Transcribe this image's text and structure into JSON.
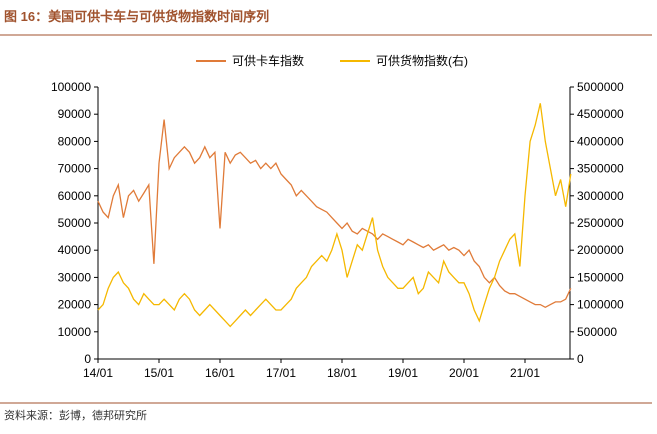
{
  "chart_data": {
    "type": "line",
    "title": "图 16：美国可供卡车与可供货物指数时间序列",
    "source": "资料来源：彭博，德邦研究所",
    "categories": [
      "14/01",
      null,
      null,
      null,
      null,
      null,
      null,
      null,
      null,
      null,
      null,
      null,
      "15/01",
      null,
      null,
      null,
      null,
      null,
      null,
      null,
      null,
      null,
      null,
      null,
      "16/01",
      null,
      null,
      null,
      null,
      null,
      null,
      null,
      null,
      null,
      null,
      null,
      "17/01",
      null,
      null,
      null,
      null,
      null,
      null,
      null,
      null,
      null,
      null,
      null,
      "18/01",
      null,
      null,
      null,
      null,
      null,
      null,
      null,
      null,
      null,
      null,
      null,
      "19/01",
      null,
      null,
      null,
      null,
      null,
      null,
      null,
      null,
      null,
      null,
      null,
      "20/01",
      null,
      null,
      null,
      null,
      null,
      null,
      null,
      null,
      null,
      null,
      null,
      "21/01",
      null,
      null,
      null,
      null,
      null,
      null,
      null,
      null,
      null
    ],
    "series": [
      {
        "name": "可供卡车指数",
        "color": "#e07b39",
        "values": [
          58000,
          54000,
          52000,
          60000,
          64000,
          52000,
          60000,
          62000,
          58000,
          61000,
          64000,
          35000,
          72000,
          88000,
          70000,
          74000,
          76000,
          78000,
          76000,
          72000,
          74000,
          78000,
          74000,
          76000,
          48000,
          76000,
          72000,
          75000,
          76000,
          74000,
          72000,
          73000,
          70000,
          72000,
          70000,
          72000,
          68000,
          66000,
          64000,
          60000,
          62000,
          60000,
          58000,
          56000,
          55000,
          54000,
          52000,
          50000,
          48000,
          50000,
          47000,
          46000,
          48000,
          47000,
          46000,
          44000,
          46000,
          45000,
          44000,
          43000,
          42000,
          44000,
          43000,
          42000,
          41000,
          42000,
          40000,
          41000,
          42000,
          40000,
          41000,
          40000,
          38000,
          40000,
          36000,
          34000,
          30000,
          28000,
          30000,
          27000,
          25000,
          24000,
          24000,
          23000,
          22000,
          21000,
          20000,
          20000,
          19000,
          20000,
          21000,
          21000,
          22000,
          26000
        ]
      },
      {
        "name": "可供货物指数(右)",
        "color": "#f5b800",
        "axis": "y2",
        "values": [
          900000,
          1000000,
          1300000,
          1500000,
          1600000,
          1400000,
          1300000,
          1100000,
          1000000,
          1200000,
          1100000,
          1000000,
          1000000,
          1100000,
          1000000,
          900000,
          1100000,
          1200000,
          1100000,
          900000,
          800000,
          900000,
          1000000,
          900000,
          800000,
          700000,
          600000,
          700000,
          800000,
          900000,
          800000,
          900000,
          1000000,
          1100000,
          1000000,
          900000,
          900000,
          1000000,
          1100000,
          1300000,
          1400000,
          1500000,
          1700000,
          1800000,
          1900000,
          1800000,
          2000000,
          2300000,
          2000000,
          1500000,
          1800000,
          2100000,
          2000000,
          2300000,
          2600000,
          2000000,
          1700000,
          1500000,
          1400000,
          1300000,
          1300000,
          1400000,
          1500000,
          1200000,
          1300000,
          1600000,
          1500000,
          1400000,
          1800000,
          1600000,
          1500000,
          1400000,
          1400000,
          1200000,
          900000,
          700000,
          1000000,
          1300000,
          1500000,
          1800000,
          2000000,
          2200000,
          2300000,
          1700000,
          3000000,
          4000000,
          4300000,
          4700000,
          4000000,
          3500000,
          3000000,
          3300000,
          2800000,
          3400000
        ]
      }
    ],
    "ylim": [
      0,
      100000
    ],
    "yticks": [
      0,
      10000,
      20000,
      30000,
      40000,
      50000,
      60000,
      70000,
      80000,
      90000,
      100000
    ],
    "y2lim": [
      0,
      5000000
    ],
    "y2ticks": [
      0,
      500000,
      1000000,
      1500000,
      2000000,
      2500000,
      3000000,
      3500000,
      4000000,
      4500000,
      5000000
    ],
    "legend": "top"
  }
}
